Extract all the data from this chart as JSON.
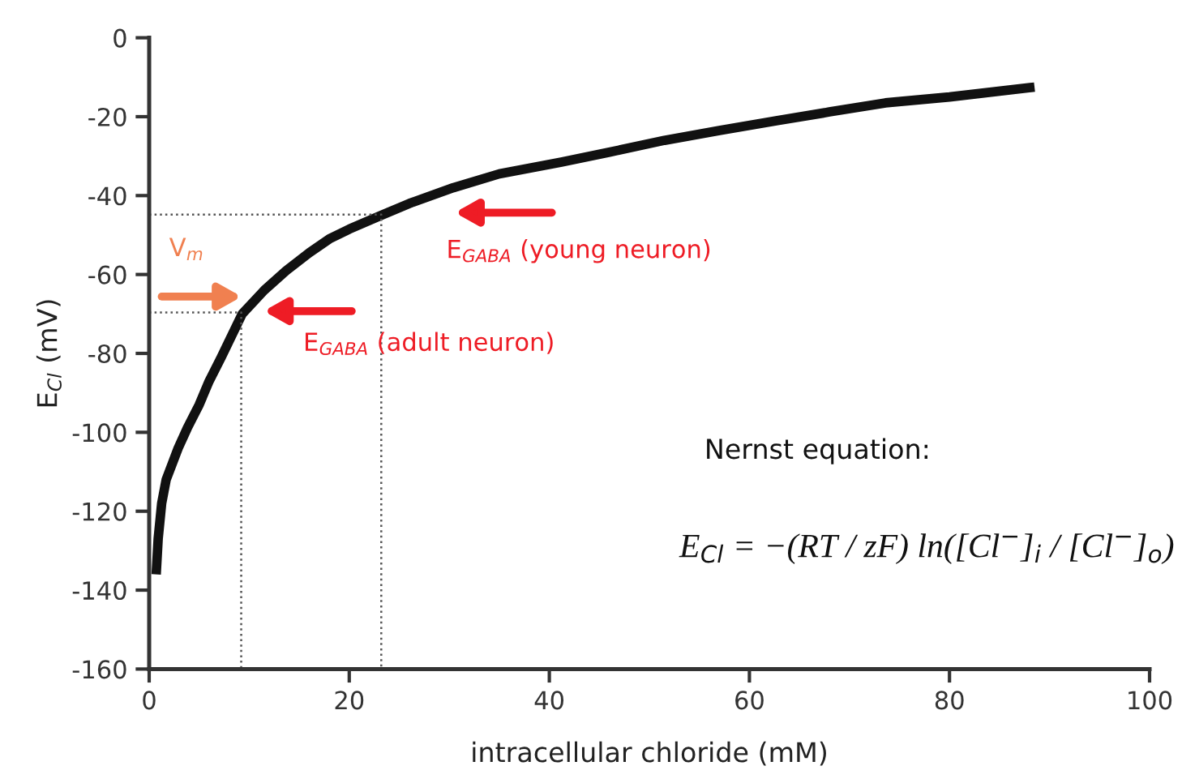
{
  "chart_data": {
    "type": "line",
    "xlabel": "intracellular chloride (mM)",
    "ylabel": "E$_{Cl}$ (mV)",
    "xlim": [
      0,
      100
    ],
    "ylim": [
      -160,
      0
    ],
    "xticks": [
      0,
      20,
      40,
      60,
      80,
      100
    ],
    "yticks": [
      -160,
      -140,
      -120,
      -100,
      -80,
      -60,
      -40,
      -20,
      0
    ],
    "grid": false,
    "marker": "none",
    "series": [
      {
        "color": "#111111",
        "line_style": "solid",
        "x": [
          0.7,
          0.9,
          1.25,
          1.7,
          2.9,
          3.8,
          5.0,
          6.0,
          7.2,
          9.3,
          11.5,
          13.7,
          16,
          18,
          20,
          23.2,
          26,
          30.4,
          35,
          41.2,
          46,
          51.5,
          57,
          62.8,
          68,
          73.6,
          80,
          88.5
        ],
        "values": [
          -136,
          -127,
          -118,
          -112,
          -104,
          -99,
          -93,
          -87,
          -81,
          -70,
          -64,
          -59,
          -54.5,
          -51,
          -48.5,
          -45,
          -42,
          -38,
          -34.5,
          -31.5,
          -29,
          -26,
          -23.5,
          -21,
          -18.8,
          -16.5,
          -15,
          -12.5
        ]
      },
      {
        "color": "#555555",
        "line_style": "dotted",
        "x": [
          0,
          9.2,
          9.2
        ],
        "values": [
          -69.6,
          -69.6,
          -160
        ]
      },
      {
        "color": "#555555",
        "line_style": "dotted",
        "x": [
          0,
          23.2,
          23.2
        ],
        "values": [
          -44.8,
          -44.8,
          -160
        ]
      }
    ],
    "annotations": [
      "V$_{m}$",
      "E$_{GABA}$ (adult neuron)",
      "E$_{GABA}$ (young neuron)",
      "Nernst equation:",
      "E$_{Cl}$ = −(RT / zF) ln([Cl$^{−}$]$_{i}$ / [Cl$^{−}$]$_{o}$)"
    ]
  }
}
